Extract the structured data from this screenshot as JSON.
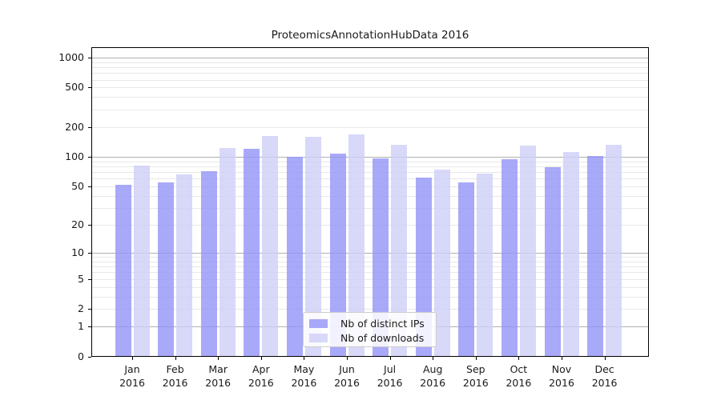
{
  "title": "ProteomicsAnnotationHubData 2016",
  "chart_data": {
    "type": "bar",
    "scale": "log(1+x)",
    "title": "ProteomicsAnnotationHubData 2016",
    "xlabel": "",
    "ylabel": "",
    "categories": [
      "Jan",
      "Feb",
      "Mar",
      "Apr",
      "May",
      "Jun",
      "Jul",
      "Aug",
      "Sep",
      "Oct",
      "Nov",
      "Dec"
    ],
    "year_label": "2016",
    "series": [
      {
        "name": "Nb of distinct IPs",
        "color": "rgba(147,147,247,0.8)",
        "values": [
          52,
          55,
          72,
          120,
          100,
          107,
          96,
          61,
          55,
          95,
          79,
          101
        ]
      },
      {
        "name": "Nb of downloads",
        "color": "rgba(206,206,248,0.8)",
        "values": [
          82,
          66,
          122,
          163,
          159,
          170,
          132,
          74,
          68,
          130,
          112,
          133
        ]
      }
    ],
    "y_ticks": [
      1000,
      500,
      200,
      100,
      50,
      20,
      10,
      5,
      2,
      1,
      0
    ],
    "major_gridlines": [
      1,
      10,
      100,
      1000
    ],
    "minor_gridline_decades": [
      1,
      10,
      100
    ],
    "ylim": [
      0,
      1000
    ],
    "grid": true,
    "legend_position": "lower center inside plot"
  },
  "colors": {
    "background": "#ffffff",
    "axis": "#000000",
    "grid_major": "#b0b0b0",
    "grid_minor": "#e8e8e8",
    "text": "#1a1a1a",
    "legend_border": "#cccccc"
  }
}
